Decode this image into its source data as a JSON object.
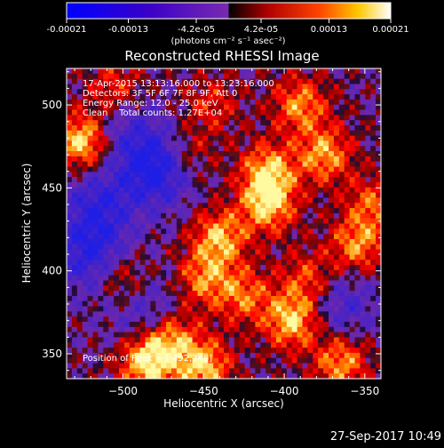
{
  "colorbar": {
    "tick_labels": [
      "-0.00021",
      "-0.00013",
      "-4.2e-05",
      "4.2e-05",
      "0.00013",
      "0.00021"
    ],
    "tick_values": [
      -0.00021,
      -0.00013,
      -4.2e-05,
      4.2e-05,
      0.00013,
      0.00021
    ],
    "range": [
      -0.00021,
      0.00021
    ],
    "unit_label": "(photons cm⁻² s⁻¹ asec⁻²)"
  },
  "chart_data": {
    "type": "heatmap",
    "title": "Reconstructed RHESSI Image",
    "xlabel": "Heliocentric X (arcsec)",
    "ylabel": "Heliocentric Y (arcsec)",
    "xlim": [
      -535,
      -340
    ],
    "ylim": [
      335,
      522
    ],
    "x_ticks": [
      -500,
      -450,
      -400,
      -350
    ],
    "x_tick_labels": [
      "−500",
      "−450",
      "−400",
      "−350"
    ],
    "y_ticks": [
      350,
      400,
      450,
      500
    ],
    "y_tick_labels": [
      "350",
      "400",
      "450",
      "500"
    ],
    "annotations": [
      "17-Apr-2015 13:13:16.000 to 13:23:16.000",
      "Detectors: 3F 5F 6F 7F 8F 9F, Att 0",
      "Energy Range: 12.0 - 25.0 keV",
      "Clean    Total counts: 1.27E+04",
      "Position of Peak = [-492,348]"
    ],
    "peak": [
      -492,
      348
    ],
    "sources": [
      {
        "x": -525,
        "y": 478,
        "amp": 1.0
      },
      {
        "x": -485,
        "y": 345,
        "amp": 1.0
      },
      {
        "x": -450,
        "y": 342,
        "amp": 0.85
      },
      {
        "x": -395,
        "y": 370,
        "amp": 0.9
      },
      {
        "x": -365,
        "y": 345,
        "amp": 0.75
      },
      {
        "x": -440,
        "y": 420,
        "amp": 0.8
      },
      {
        "x": -410,
        "y": 440,
        "amp": 0.85
      },
      {
        "x": -410,
        "y": 460,
        "amp": 0.8
      },
      {
        "x": -375,
        "y": 470,
        "amp": 0.75
      },
      {
        "x": -390,
        "y": 500,
        "amp": 0.7
      },
      {
        "x": -355,
        "y": 415,
        "amp": 0.7
      },
      {
        "x": -450,
        "y": 395,
        "amp": 0.65
      },
      {
        "x": -470,
        "y": 360,
        "amp": 0.7
      },
      {
        "x": -500,
        "y": 395,
        "amp": 0.5
      },
      {
        "x": -425,
        "y": 385,
        "amp": 0.6
      },
      {
        "x": -385,
        "y": 395,
        "amp": 0.55
      },
      {
        "x": -505,
        "y": 510,
        "amp": 0.5
      },
      {
        "x": -445,
        "y": 500,
        "amp": 0.4
      },
      {
        "x": -460,
        "y": 470,
        "amp": 0.45
      },
      {
        "x": -345,
        "y": 440,
        "amp": 0.55
      }
    ],
    "negative_regions": [
      {
        "x": -478,
        "y": 462,
        "amp": 0.85
      },
      {
        "x": -520,
        "y": 410,
        "amp": 0.65
      },
      {
        "x": -515,
        "y": 440,
        "amp": 0.55
      },
      {
        "x": -500,
        "y": 485,
        "amp": 0.4
      },
      {
        "x": -365,
        "y": 380,
        "amp": 0.45
      },
      {
        "x": -485,
        "y": 375,
        "amp": 0.45
      }
    ]
  },
  "timestamp": "27-Sep-2017 10:49"
}
